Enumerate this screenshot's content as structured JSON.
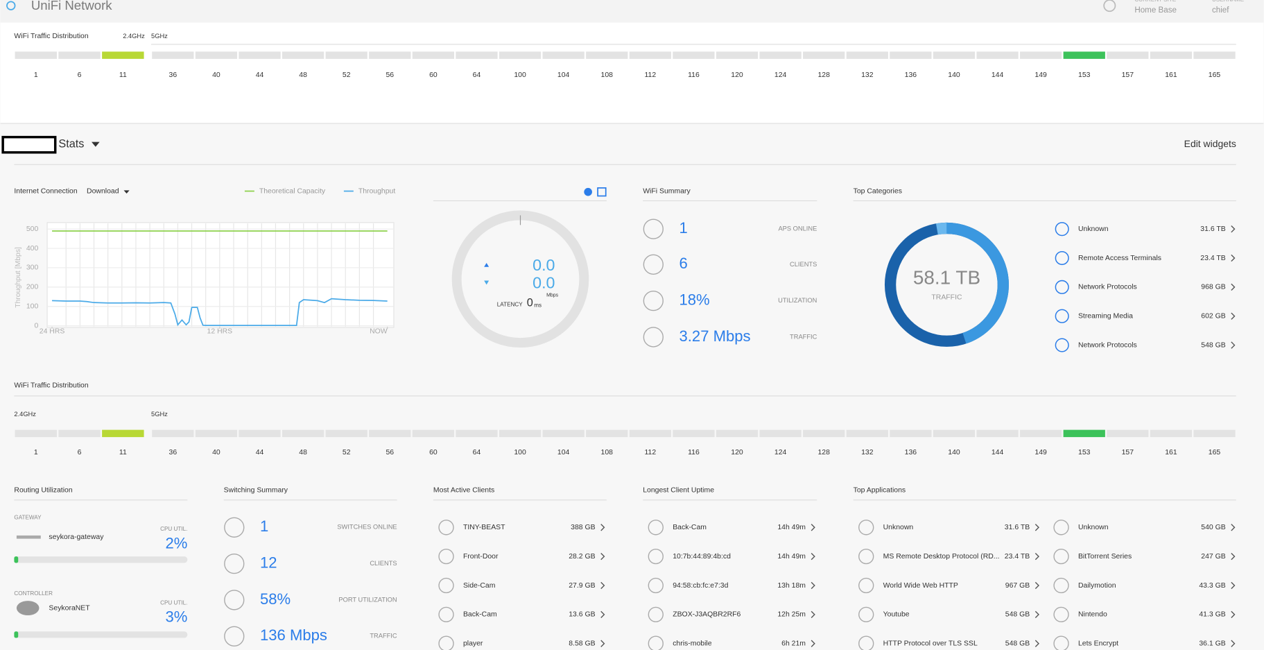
{
  "header": {
    "brand": "UniFi Network",
    "site_label": "CURRENT SITE",
    "site": "Home Base",
    "user_label": "USERNAME",
    "user": "chief"
  },
  "wifi_top": {
    "title": "WiFi Traffic Distribution",
    "bands": [
      "2.4GHz",
      "5GHz"
    ],
    "channels_24": [
      "1",
      "6",
      "11"
    ],
    "channels_5": [
      "36",
      "40",
      "44",
      "48",
      "52",
      "56",
      "60",
      "64",
      "100",
      "104",
      "108",
      "112",
      "116",
      "120",
      "124",
      "128",
      "132",
      "136",
      "140",
      "144",
      "149",
      "153",
      "157",
      "161",
      "165"
    ],
    "active_channel_24": "11",
    "active_channel_5": "153",
    "active_color_24": "#b8d835",
    "active_color_5": "#3cc25a"
  },
  "stats": {
    "title": "Stats",
    "edit": "Edit widgets"
  },
  "chart_data": {
    "type": "line",
    "title": "Internet Connection",
    "dropdown": "Download",
    "ylabel": "Throughput [Mbps]",
    "x": [
      0,
      1,
      2,
      2.5,
      3,
      4,
      5,
      6,
      7,
      8,
      8.5,
      8.8,
      9,
      9.3,
      9.6,
      9.8,
      10,
      10.4,
      10.6,
      10.8,
      11,
      12,
      14,
      16,
      17.5,
      17.7,
      18,
      19,
      19.5,
      20,
      21,
      22,
      23,
      24
    ],
    "series": [
      {
        "name": "Theoretical Capacity",
        "color": "#8dd14b",
        "values": [
          490,
          490,
          490,
          490,
          490,
          490,
          490,
          490,
          490,
          490,
          490,
          490,
          490,
          490,
          490,
          490,
          490,
          490,
          490,
          490,
          490,
          490,
          490,
          490,
          490,
          490,
          490,
          490,
          490,
          490,
          490,
          490,
          490,
          490
        ]
      },
      {
        "name": "Throughput",
        "color": "#4aaae8",
        "values": [
          130,
          128,
          128,
          125,
          120,
          118,
          118,
          119,
          118,
          120,
          118,
          60,
          5,
          30,
          5,
          20,
          95,
          95,
          40,
          3,
          2,
          2,
          2,
          2,
          2,
          120,
          135,
          130,
          120,
          140,
          135,
          132,
          131,
          128
        ]
      }
    ],
    "xlim": [
      0,
      24
    ],
    "xticks": [
      {
        "value": 0,
        "label": "24 HRS"
      },
      {
        "value": 12,
        "label": "12 HRS"
      },
      {
        "value": 24,
        "label": "NOW"
      }
    ],
    "ylim": [
      0,
      500
    ],
    "yticks": [
      0,
      100,
      200,
      300,
      400,
      500
    ],
    "grid": true
  },
  "speed_test": {
    "download": "0.0",
    "upload": "0.0",
    "unit": "Mbps",
    "latency_label": "LATENCY",
    "latency": "0",
    "latency_unit": "ms"
  },
  "wifi_summary": {
    "title": "WiFi Summary",
    "rows": [
      {
        "value": "1",
        "label": "APS ONLINE"
      },
      {
        "value": "6",
        "label": "CLIENTS"
      },
      {
        "value": "18%",
        "label": "UTILIZATION"
      },
      {
        "value": "3.27 Mbps",
        "label": "TRAFFIC"
      }
    ]
  },
  "top_categories": {
    "title": "Top Categories",
    "total": "58.1 TB",
    "total_label": "TRAFFIC",
    "items": [
      {
        "name": "Unknown",
        "size": "31.6 TB"
      },
      {
        "name": "Remote Access Terminals",
        "size": "23.4 TB"
      },
      {
        "name": "Network Protocols",
        "size": "968 GB"
      },
      {
        "name": "Streaming Media",
        "size": "602 GB"
      },
      {
        "name": "Network Protocols",
        "size": "548 GB"
      }
    ]
  },
  "wifi_bottom": {
    "title": "WiFi Traffic Distribution",
    "bands": [
      "2.4GHz",
      "5GHz"
    ],
    "channels_24": [
      "1",
      "6",
      "11"
    ],
    "channels_5": [
      "36",
      "40",
      "44",
      "48",
      "52",
      "56",
      "60",
      "64",
      "100",
      "104",
      "108",
      "112",
      "116",
      "120",
      "124",
      "128",
      "132",
      "136",
      "140",
      "144",
      "149",
      "153",
      "157",
      "161",
      "165"
    ],
    "active_channel_24": "11",
    "active_channel_5": "153",
    "active_color_24": "#b8d835",
    "active_color_5": "#3cc25a"
  },
  "routing": {
    "title": "Routing Utilization",
    "devices": [
      {
        "role": "GATEWAY",
        "name": "seykora-gateway",
        "cpu_label": "CPU UTIL.",
        "cpu": "2%"
      },
      {
        "role": "CONTROLLER",
        "name": "SeykoraNET",
        "cpu_label": "CPU UTIL.",
        "cpu": "3%"
      }
    ]
  },
  "switching": {
    "title": "Switching Summary",
    "rows": [
      {
        "value": "1",
        "label": "SWITCHES ONLINE"
      },
      {
        "value": "12",
        "label": "CLIENTS"
      },
      {
        "value": "58%",
        "label": "PORT UTILIZATION"
      },
      {
        "value": "136 Mbps",
        "label": "TRAFFIC"
      }
    ]
  },
  "active_clients": {
    "title": "Most Active Clients",
    "items": [
      {
        "name": "TINY-BEAST",
        "value": "388 GB"
      },
      {
        "name": "Front-Door",
        "value": "28.2 GB"
      },
      {
        "name": "Side-Cam",
        "value": "27.9 GB"
      },
      {
        "name": "Back-Cam",
        "value": "13.6 GB"
      },
      {
        "name": "player",
        "value": "8.58 GB"
      }
    ]
  },
  "uptime": {
    "title": "Longest Client Uptime",
    "items": [
      {
        "name": "Back-Cam",
        "value": "14h 49m"
      },
      {
        "name": "10:7b:44:89:4b:cd",
        "value": "14h 49m"
      },
      {
        "name": "94:58:cb:fc:e7:3d",
        "value": "13h 18m"
      },
      {
        "name": "ZBOX-J3AQBR2RF6",
        "value": "12h 25m"
      },
      {
        "name": "chris-mobile",
        "value": "6h 21m"
      }
    ]
  },
  "top_applications": {
    "title": "Top Applications",
    "columns": [
      [
        {
          "name": "Unknown",
          "value": "31.6 TB"
        },
        {
          "name": "MS Remote Desktop Protocol (RD...",
          "value": "23.4 TB"
        },
        {
          "name": "World Wide Web HTTP",
          "value": "967 GB"
        },
        {
          "name": "Youtube",
          "value": "548 GB"
        },
        {
          "name": "HTTP Protocol over TLS SSL",
          "value": "548 GB"
        }
      ],
      [
        {
          "name": "Unknown",
          "value": "540 GB"
        },
        {
          "name": "BitTorrent Series",
          "value": "247 GB"
        },
        {
          "name": "Dailymotion",
          "value": "43.3 GB"
        },
        {
          "name": "Nintendo",
          "value": "41.3 GB"
        },
        {
          "name": "Lets Encrypt",
          "value": "36.1 GB"
        }
      ]
    ]
  }
}
